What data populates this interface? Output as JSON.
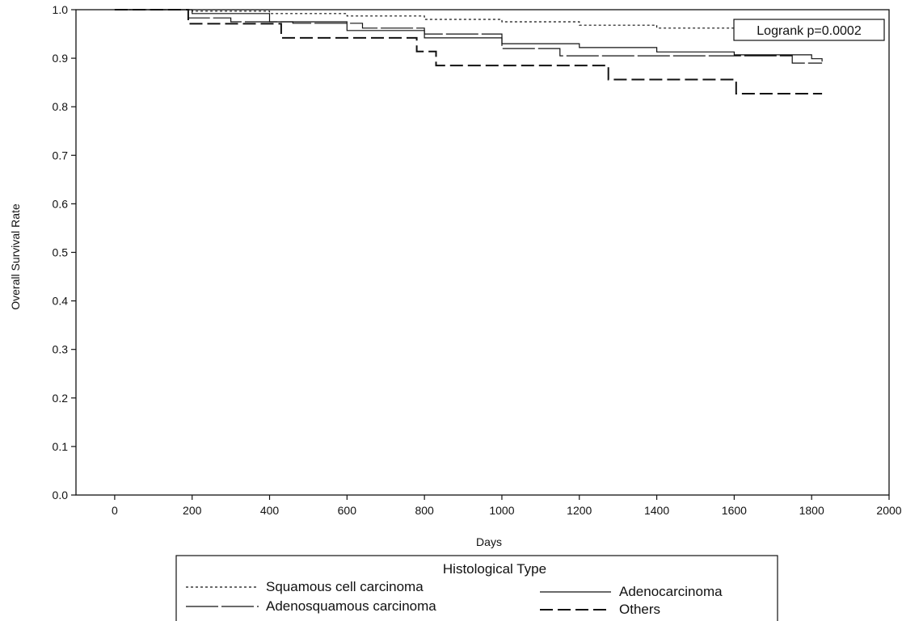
{
  "chart_data": {
    "type": "line",
    "xlabel": "Days",
    "ylabel": "Overall Survival Rate",
    "xlim": [
      -100,
      2000
    ],
    "ylim": [
      0,
      1.0
    ],
    "xticks": [
      0,
      200,
      400,
      600,
      800,
      1000,
      1200,
      1400,
      1600,
      1800,
      2000
    ],
    "yticks": [
      "0.0",
      "0.1",
      "0.2",
      "0.3",
      "0.4",
      "0.5",
      "0.6",
      "0.7",
      "0.8",
      "0.9",
      "1.0"
    ],
    "grid": false,
    "annotation": "Logrank p=0.0002",
    "legend": {
      "title": "Histological Type",
      "position": "bottom"
    },
    "series": [
      {
        "name": "Squamous cell carcinoma",
        "style": "dotted",
        "points": [
          [
            0,
            1.0
          ],
          [
            200,
            0.997
          ],
          [
            400,
            0.992
          ],
          [
            600,
            0.987
          ],
          [
            800,
            0.98
          ],
          [
            1000,
            0.975
          ],
          [
            1200,
            0.968
          ],
          [
            1400,
            0.962
          ],
          [
            1600,
            0.955
          ],
          [
            1800,
            0.951
          ],
          [
            1827,
            0.951
          ]
        ]
      },
      {
        "name": "Adenocarcinoma",
        "style": "solid",
        "points": [
          [
            0,
            1.0
          ],
          [
            200,
            0.992
          ],
          [
            400,
            0.975
          ],
          [
            600,
            0.957
          ],
          [
            800,
            0.942
          ],
          [
            1000,
            0.93
          ],
          [
            1200,
            0.922
          ],
          [
            1400,
            0.913
          ],
          [
            1600,
            0.907
          ],
          [
            1800,
            0.899
          ],
          [
            1827,
            0.893
          ]
        ]
      },
      {
        "name": "Adenosquamous carcinoma",
        "style": "longdash",
        "points": [
          [
            0,
            1.0
          ],
          [
            190,
            0.983
          ],
          [
            300,
            0.975
          ],
          [
            460,
            0.972
          ],
          [
            640,
            0.962
          ],
          [
            800,
            0.95
          ],
          [
            1000,
            0.92
          ],
          [
            1150,
            0.905
          ],
          [
            1400,
            0.905
          ],
          [
            1600,
            0.905
          ],
          [
            1750,
            0.89
          ],
          [
            1827,
            0.89
          ]
        ]
      },
      {
        "name": "Others",
        "style": "dash",
        "points": [
          [
            0,
            1.0
          ],
          [
            190,
            0.971
          ],
          [
            430,
            0.942
          ],
          [
            780,
            0.914
          ],
          [
            830,
            0.885
          ],
          [
            1275,
            0.856
          ],
          [
            1605,
            0.827
          ],
          [
            1827,
            0.827
          ]
        ]
      }
    ]
  }
}
